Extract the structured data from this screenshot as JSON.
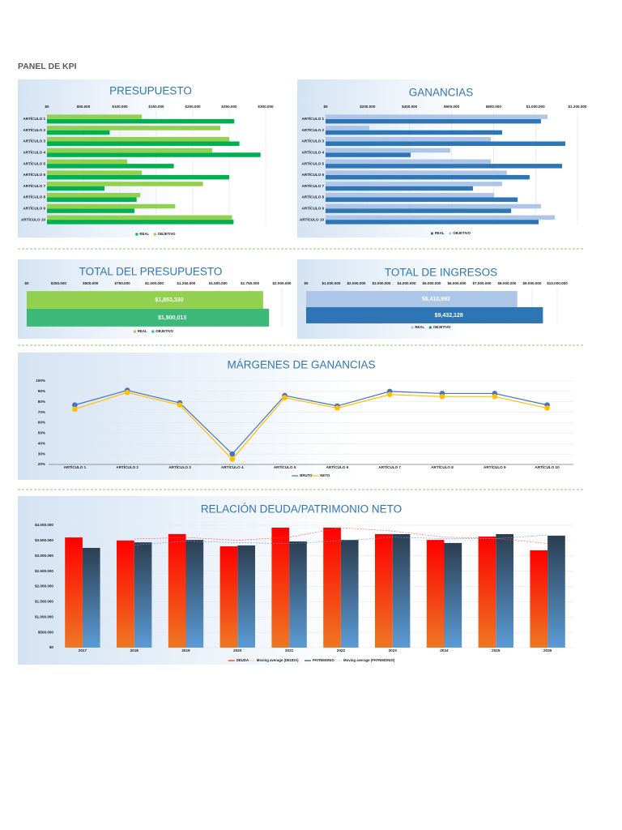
{
  "title": "PANEL DE KPI",
  "chart_data": [
    {
      "type": "hbar",
      "title": "PRESUPUESTO",
      "categories": [
        "ARTÍCULO 1",
        "ARTÍCULO 2",
        "ARTÍCULO 3",
        "ARTÍCULO 4",
        "ARTÍCULO 5",
        "ARTÍCULO 6",
        "ARTÍCULO 7",
        "ARTÍCULO 8",
        "ARTÍCULO 9",
        "ARTÍCULO 10"
      ],
      "series": [
        {
          "name": "REAL",
          "color": "#00b050",
          "values": [
            257000,
            86000,
            264000,
            293000,
            174000,
            250000,
            79000,
            123000,
            120000,
            256000
          ]
        },
        {
          "name": "OBJETIVO",
          "color": "#92d050",
          "values": [
            130000,
            238000,
            250000,
            227000,
            110000,
            130000,
            214000,
            128000,
            176000,
            254000
          ]
        }
      ],
      "xlim": [
        0,
        300000
      ],
      "xticks": [
        {
          "value": 0,
          "label": "$0"
        },
        {
          "value": 50000,
          "label": "$50.000"
        },
        {
          "value": 100000,
          "label": "$100.000"
        },
        {
          "value": 150000,
          "label": "$150.000"
        },
        {
          "value": 200000,
          "label": "$200.000"
        },
        {
          "value": 250000,
          "label": "$250.000"
        },
        {
          "value": 300000,
          "label": "$300.000"
        }
      ],
      "grid": true
    },
    {
      "type": "hbar",
      "title": "GANANCIAS",
      "categories": [
        "ARTÍCULO 1",
        "ARTÍCULO 2",
        "ARTÍCULO 3",
        "ARTÍCULO 4",
        "ARTÍCULO 5",
        "ARTÍCULO 6",
        "ARTÍCULO 7",
        "ARTÍCULO 8",
        "ARTÍCULO 9",
        "ARTÍCULO 10"
      ],
      "series": [
        {
          "name": "REAL",
          "color": "#2e75b6",
          "values": [
            1026000,
            841000,
            1142000,
            405000,
            1127000,
            972000,
            702000,
            915000,
            884000,
            1015000
          ]
        },
        {
          "name": "OBJETIVO",
          "color": "#adc5e7",
          "values": [
            1057000,
            208000,
            787000,
            594000,
            787000,
            864000,
            841000,
            803000,
            1026000,
            1092000
          ]
        }
      ],
      "xlim": [
        0,
        1200000
      ],
      "xticks": [
        {
          "value": 0,
          "label": "$0"
        },
        {
          "value": 200000,
          "label": "$200.000"
        },
        {
          "value": 400000,
          "label": "$400.000"
        },
        {
          "value": 600000,
          "label": "$600.000"
        },
        {
          "value": 800000,
          "label": "$800.000"
        },
        {
          "value": 1000000,
          "label": "$1.000.000"
        },
        {
          "value": 1200000,
          "label": "$1.200.000"
        }
      ],
      "grid": true
    },
    {
      "type": "hbar",
      "title": "TOTAL DEL PRESUPUESTO",
      "series": [
        {
          "name": "REAL",
          "color": "#92d050",
          "values": [
            1853330
          ],
          "value_labels": [
            "$1,853,330"
          ]
        },
        {
          "name": "OBJETIVO",
          "color": "#3cb878",
          "values": [
            1900013
          ],
          "value_labels": [
            "$1,900,013"
          ]
        }
      ],
      "xlim": [
        0,
        2000000
      ],
      "xticks": [
        {
          "value": 0,
          "label": "$0"
        },
        {
          "value": 250000,
          "label": "$250.000"
        },
        {
          "value": 500000,
          "label": "$500.000"
        },
        {
          "value": 750000,
          "label": "$750.000"
        },
        {
          "value": 1000000,
          "label": "$1.000.000"
        },
        {
          "value": 1250000,
          "label": "$1.250.000"
        },
        {
          "value": 1500000,
          "label": "$1.500.000"
        },
        {
          "value": 1750000,
          "label": "$1.750.000"
        },
        {
          "value": 2000000,
          "label": "$2.000.000"
        }
      ],
      "grid": true
    },
    {
      "type": "hbar",
      "title": "TOTAL DE INGRESOS",
      "series": [
        {
          "name": "REAL",
          "color": "#adc5e7",
          "values": [
            8410993
          ],
          "value_labels": [
            "$8,410,993"
          ]
        },
        {
          "name": "OBJETIVO",
          "color": "#2e75b6",
          "values": [
            9432128
          ],
          "value_labels": [
            "$9,432,128"
          ]
        }
      ],
      "xlim": [
        0,
        10000000
      ],
      "xticks": [
        {
          "value": 0,
          "label": "$0"
        },
        {
          "value": 1000000,
          "label": "$1.000.000"
        },
        {
          "value": 2000000,
          "label": "$2.000.000"
        },
        {
          "value": 3000000,
          "label": "$3.000.000"
        },
        {
          "value": 4000000,
          "label": "$4.000.000"
        },
        {
          "value": 5000000,
          "label": "$5.000.000"
        },
        {
          "value": 6000000,
          "label": "$6.000.000"
        },
        {
          "value": 7000000,
          "label": "$7.000.000"
        },
        {
          "value": 8000000,
          "label": "$8.000.000"
        },
        {
          "value": 9000000,
          "label": "$9.000.000"
        },
        {
          "value": 10000000,
          "label": "$10.000.000"
        }
      ],
      "grid": true
    },
    {
      "type": "line",
      "title": "MÁRGENES DE GANANCIAS",
      "categories": [
        "ARTÍCULO 1",
        "ARTÍCULO 2",
        "ARTÍCULO 3",
        "ARTÍCULO 4",
        "ARTÍCULO 5",
        "ARTÍCULO 6",
        "ARTÍCULO 7",
        "ARTÍCULO 8",
        "ARTÍCULO 9",
        "ARTÍCULO 10"
      ],
      "series": [
        {
          "name": "BRUTO",
          "color": "#4472c4",
          "values": [
            77,
            91,
            79,
            30,
            86,
            76,
            90,
            88,
            88,
            77
          ]
        },
        {
          "name": "NETO",
          "color": "#ffc000",
          "values": [
            73,
            89,
            77,
            25,
            84,
            74,
            87,
            85,
            85,
            74
          ]
        }
      ],
      "ylim": [
        20,
        100
      ],
      "yticks": [
        {
          "value": 20,
          "label": "20%"
        },
        {
          "value": 30,
          "label": "30%"
        },
        {
          "value": 40,
          "label": "40%"
        },
        {
          "value": 50,
          "label": "50%"
        },
        {
          "value": 60,
          "label": "60%"
        },
        {
          "value": 70,
          "label": "70%"
        },
        {
          "value": 80,
          "label": "80%"
        },
        {
          "value": 90,
          "label": "90%"
        },
        {
          "value": 100,
          "label": "100%"
        }
      ],
      "grid": true
    },
    {
      "type": "column",
      "title": "RELACIÓN DEUDA/PATRIMONIO NETO",
      "categories": [
        "2017",
        "2018",
        "2019",
        "2020",
        "2021",
        "2022",
        "2023",
        "2024",
        "2025",
        "2026"
      ],
      "series": [
        {
          "name": "DEUDA",
          "color": "#ff1a00",
          "values": [
            3600000,
            3500000,
            3710000,
            3310000,
            3920000,
            3920000,
            3710000,
            3520000,
            3630000,
            3180000
          ]
        },
        {
          "name": "PATRIMONIO",
          "color": "#34495e",
          "values": [
            3260000,
            3440000,
            3520000,
            3340000,
            3470000,
            3520000,
            3710000,
            3420000,
            3710000,
            3660000
          ]
        }
      ],
      "trendlines": [
        {
          "name": "Moving average (DEUDA)",
          "color": "#ff4d4d",
          "values": [
            null,
            3550000,
            3600000,
            3510000,
            3610000,
            3920000,
            3810000,
            3610000,
            3570000,
            3400000
          ]
        },
        {
          "name": "Moving average (PATRIMONIO)",
          "color": "#5b9bd5",
          "values": [
            null,
            3350000,
            3480000,
            3430000,
            3400000,
            3490000,
            3610000,
            3560000,
            3560000,
            3680000
          ]
        }
      ],
      "ylim": [
        0,
        4000000
      ],
      "yticks": [
        {
          "value": 0,
          "label": "$0"
        },
        {
          "value": 500000,
          "label": "$500.000"
        },
        {
          "value": 1000000,
          "label": "$1.000.000"
        },
        {
          "value": 1500000,
          "label": "$1.500.000"
        },
        {
          "value": 2000000,
          "label": "$2.000.000"
        },
        {
          "value": 2500000,
          "label": "$2.500.000"
        },
        {
          "value": 3000000,
          "label": "$3.000.000"
        },
        {
          "value": 3500000,
          "label": "$3.500.000"
        },
        {
          "value": 4000000,
          "label": "$4.000.000"
        }
      ],
      "grid": true
    }
  ]
}
